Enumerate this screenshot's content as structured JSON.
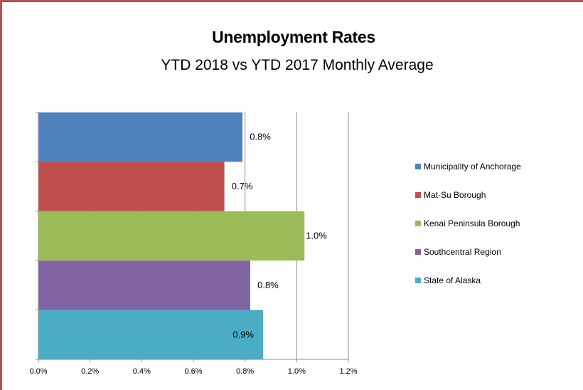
{
  "chart_data": {
    "type": "bar",
    "orientation": "horizontal",
    "title": "Unemployment Rates",
    "subtitle": "YTD 2018 vs YTD 2017 Monthly Average",
    "xlabel": "",
    "ylabel": "",
    "xlim": [
      0,
      1.2
    ],
    "x_ticks": [
      "0.0%",
      "0.2%",
      "0.4%",
      "0.6%",
      "0.8%",
      "1.0%",
      "1.2%"
    ],
    "grid": "vertical gridlines",
    "legend_position": "right",
    "series": [
      {
        "name": "Municipality of Anchorage",
        "value": 0.79,
        "label": "0.8%",
        "color": "#4f81bd"
      },
      {
        "name": "Mat-Su Borough",
        "value": 0.72,
        "label": "0.7%",
        "color": "#c0504d"
      },
      {
        "name": "Kenai Peninsula Borough",
        "value": 1.03,
        "label": "1.0%",
        "color": "#9bbb59"
      },
      {
        "name": "Southcentral Region",
        "value": 0.82,
        "label": "0.8%",
        "color": "#8064a2"
      },
      {
        "name": "State of Alaska",
        "value": 0.87,
        "label": "0.9%",
        "color": "#4bacc6"
      }
    ]
  }
}
